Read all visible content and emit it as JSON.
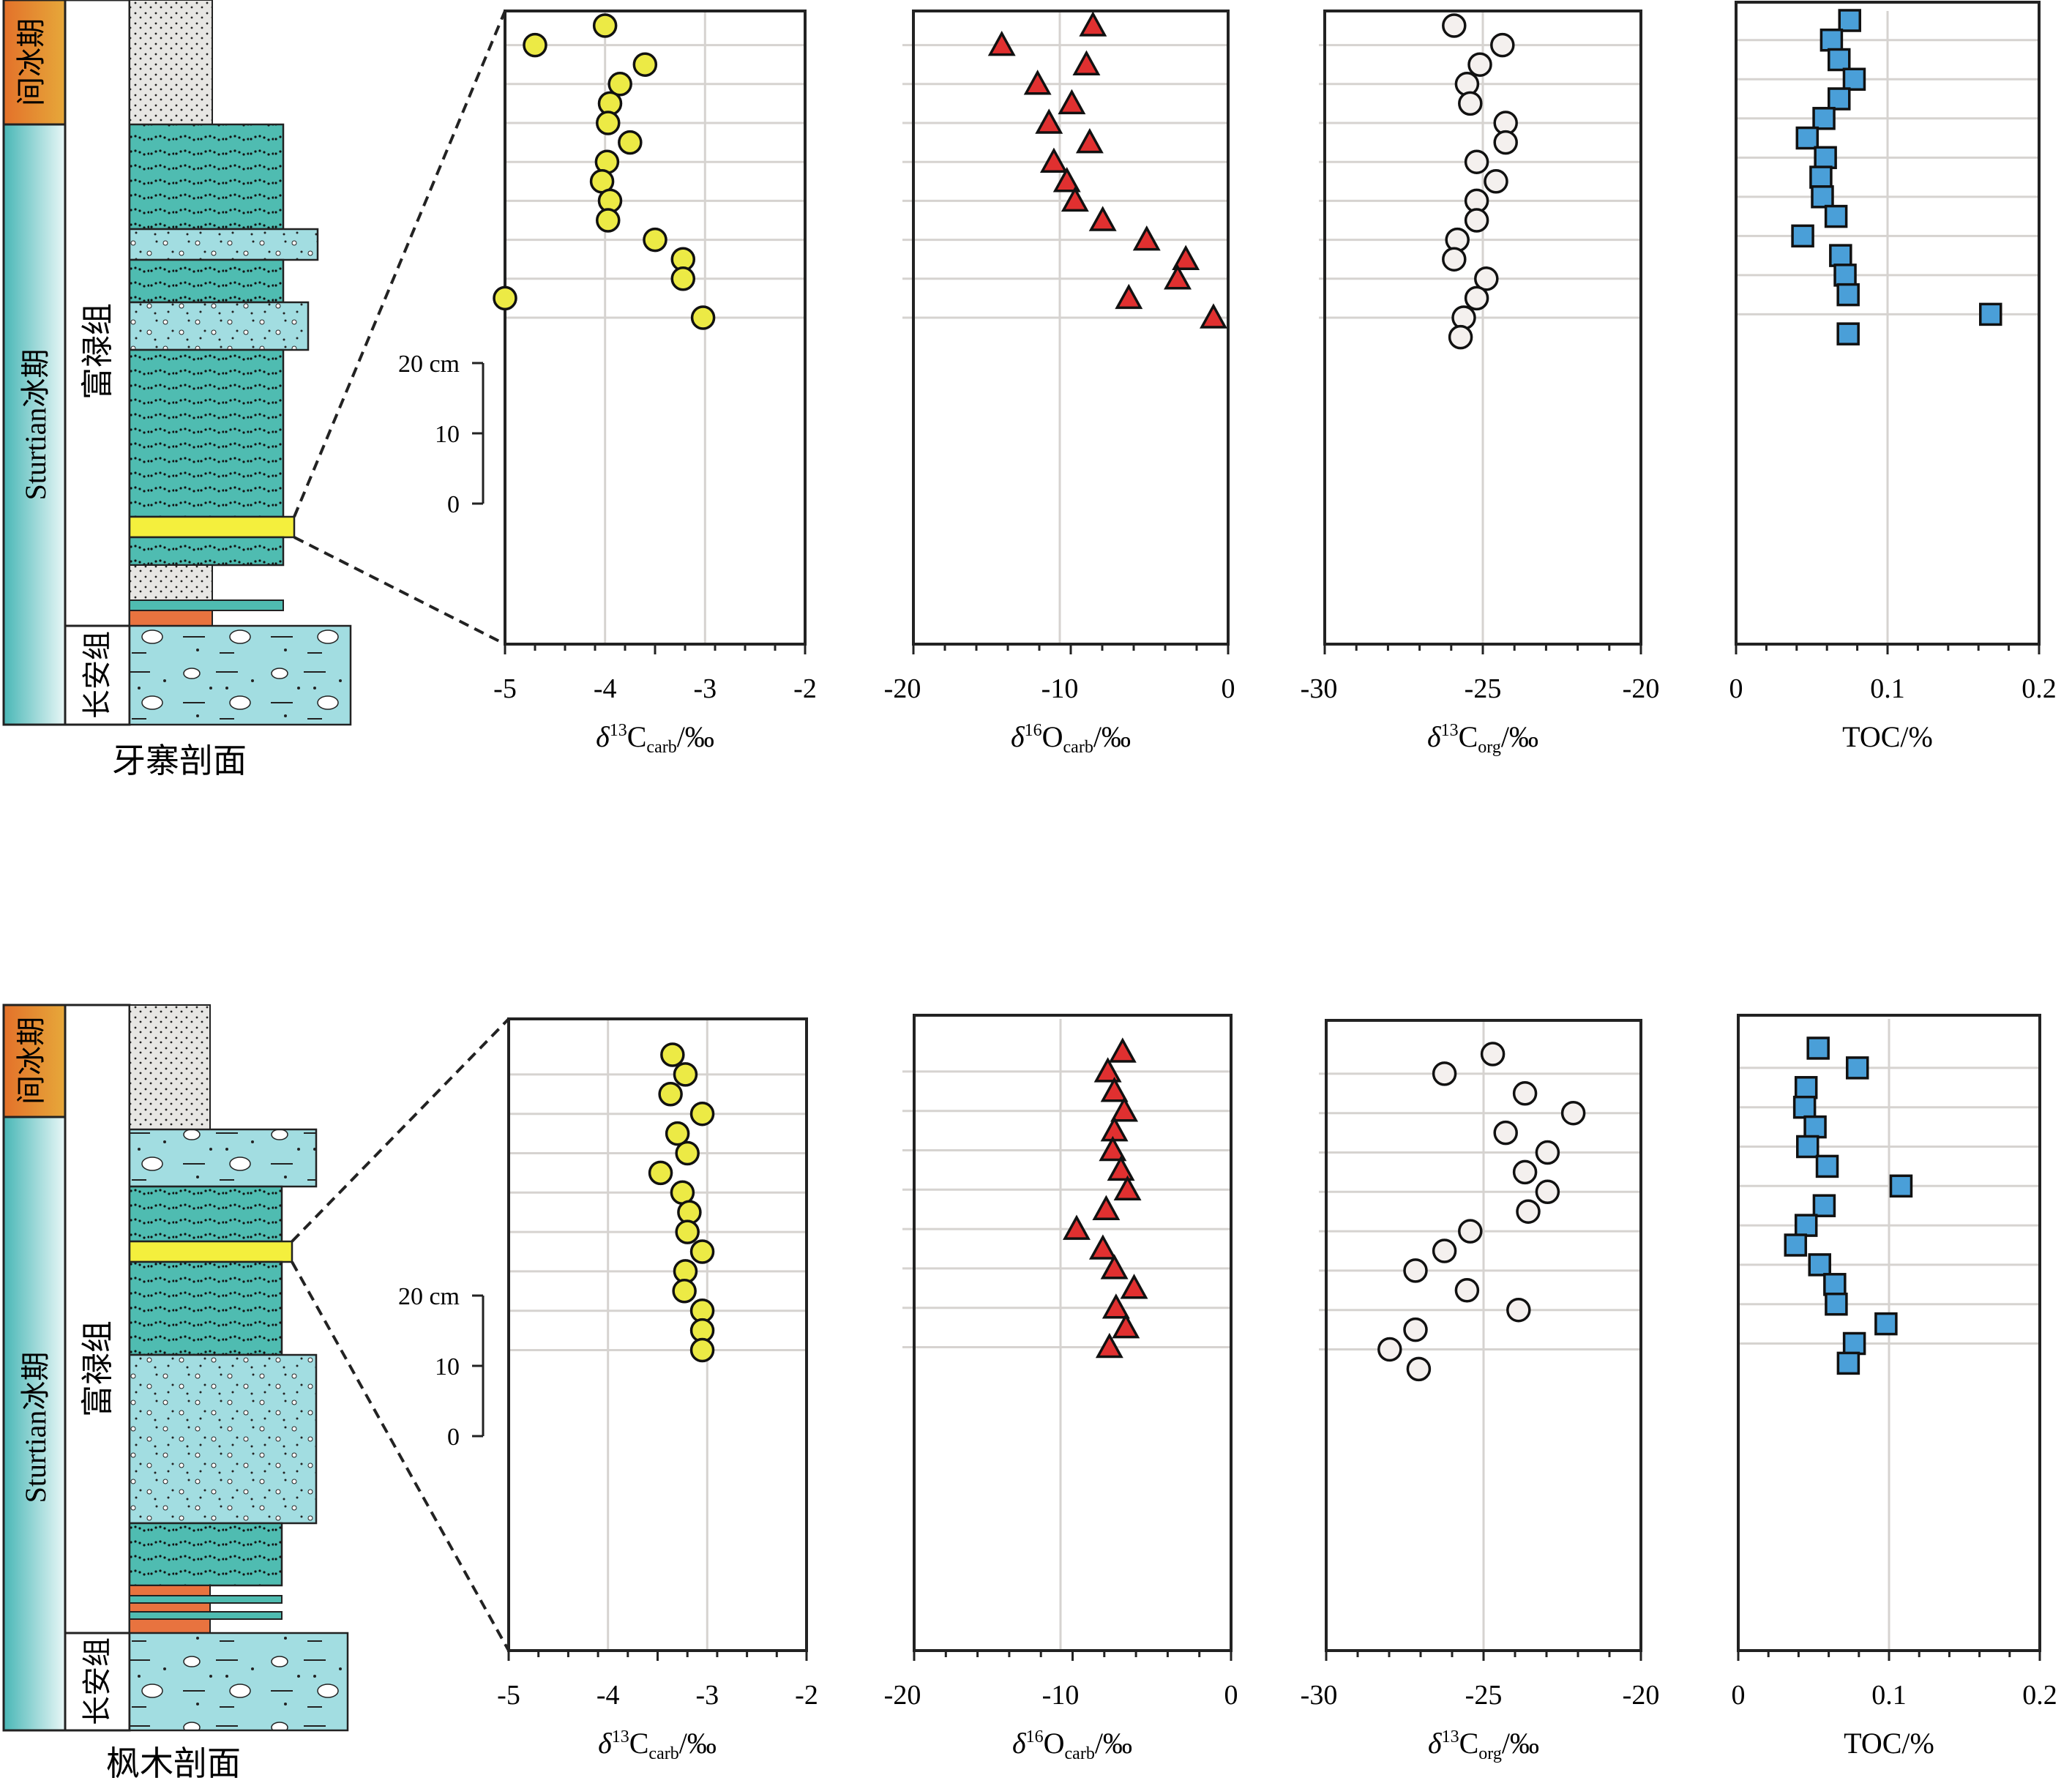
{
  "colors": {
    "carbonate_green": "#4fbcb1",
    "light_cyan": "#a2dde1",
    "sand_gray": "#e7e6e3",
    "interglacial_orange": "#e2862f",
    "marker_yellow": "#f4ef3d",
    "red_bed": "#e8733f",
    "d13c_marker": "#ecea45",
    "d18o_marker": "#e03030",
    "d13corg_marker": "#f4f0ee",
    "toc_marker": "#4a9fd8",
    "gridline": "#d6d3d0"
  },
  "icons": {
    "d13c_carb": "yellow-circle",
    "d18o_carb": "red-triangle",
    "d13c_org": "white-circle",
    "toc": "blue-square"
  },
  "sections": [
    {
      "title": "牙寨剖面",
      "labels": {
        "interglacial": "间冰期",
        "glacial": "Sturtian冰期",
        "formation": "富禄组",
        "base": "长安组"
      },
      "scale": {
        "cm20": "20 cm",
        "cm10": "10",
        "cm0": "0"
      },
      "chart_data": [
        {
          "type": "scatter",
          "marker": "yellow-circle",
          "xlabel": "δ13Ccarb/‰",
          "xlim": [
            -5,
            -2
          ],
          "xticks": [
            -5,
            -4,
            -3,
            -2
          ],
          "x": [
            -4.0,
            -4.7,
            -3.6,
            -3.85,
            -3.95,
            -3.97,
            -3.75,
            -3.98,
            -4.03,
            -3.95,
            -3.97,
            -3.5,
            -3.22,
            -3.22,
            -5.0,
            -3.02
          ]
        },
        {
          "type": "scatter",
          "marker": "red-triangle",
          "xlabel": "δ16Ocarb/‰",
          "xlim": [
            -20,
            0
          ],
          "xticks": [
            -20,
            -10,
            0
          ],
          "x": [
            -8.3,
            -13.9,
            -8.7,
            -11.7,
            -9.6,
            -11.0,
            -8.5,
            -10.7,
            -9.9,
            -9.4,
            -7.7,
            -5.0,
            -2.6,
            -3.1,
            -6.1,
            -0.9
          ]
        },
        {
          "type": "scatter",
          "marker": "white-circle",
          "xlabel": "δ13Corg/‰",
          "xlim": [
            -30,
            -20
          ],
          "xticks": [
            -30,
            -25,
            -20
          ],
          "x": [
            -25.8,
            -24.3,
            -25.0,
            -25.4,
            -25.3,
            -24.2,
            -24.2,
            -25.1,
            -24.5,
            -25.1,
            -25.1,
            -25.7,
            -25.8,
            -24.8,
            -25.1,
            -25.5,
            -25.6
          ]
        },
        {
          "type": "scatter",
          "marker": "blue-square",
          "xlabel": "TOC/%",
          "xlim": [
            0,
            0.2
          ],
          "xticks": [
            "0",
            "0.1",
            "0.2"
          ],
          "x": [
            0.075,
            0.063,
            0.068,
            0.078,
            0.068,
            0.058,
            0.047,
            0.059,
            0.056,
            0.057,
            0.066,
            0.044,
            0.069,
            0.072,
            0.074,
            0.168,
            0.074
          ]
        }
      ]
    },
    {
      "title": "枫木剖面",
      "labels": {
        "interglacial": "间冰期",
        "glacial": "Sturtian冰期",
        "formation": "富禄组",
        "base": "长安组"
      },
      "scale": {
        "cm20": "20 cm",
        "cm10": "10",
        "cm0": "0"
      },
      "chart_data": [
        {
          "type": "scatter",
          "marker": "yellow-circle",
          "xlabel": "δ13Ccarb/‰",
          "xlim": [
            -5,
            -2
          ],
          "xticks": [
            -5,
            -4,
            -3,
            -2
          ],
          "x": [
            -3.35,
            -3.22,
            -3.37,
            -3.05,
            -3.3,
            -3.2,
            -3.47,
            -3.25,
            -3.18,
            -3.2,
            -3.05,
            -3.22,
            -3.23,
            -3.05,
            -3.05,
            -3.05
          ]
        },
        {
          "type": "scatter",
          "marker": "red-triangle",
          "xlabel": "δ16Ocarb/‰",
          "xlim": [
            -20,
            0
          ],
          "xticks": [
            -20,
            -10,
            0
          ],
          "x": [
            -6.6,
            -7.5,
            -7.1,
            -6.5,
            -7.1,
            -7.2,
            -6.7,
            -6.3,
            -7.6,
            -9.4,
            -7.8,
            -7.1,
            -5.9,
            -7.0,
            -6.4,
            -7.4
          ]
        },
        {
          "type": "scatter",
          "marker": "white-circle",
          "xlabel": "δ13Corg/‰",
          "xlim": [
            -30,
            -20
          ],
          "xticks": [
            -30,
            -25,
            -20
          ],
          "x": [
            -24.6,
            -26.1,
            -23.6,
            -22.1,
            -24.2,
            -22.9,
            -23.6,
            -22.9,
            -23.5,
            -25.3,
            -26.1,
            -27.0,
            -25.4,
            -23.8,
            -27.0,
            -27.8,
            -26.9
          ]
        },
        {
          "type": "scatter",
          "marker": "blue-square",
          "xlabel": "TOC/%",
          "xlim": [
            0,
            0.2
          ],
          "xticks": [
            "0",
            "0.1",
            "0.2"
          ],
          "x": [
            0.053,
            0.079,
            0.045,
            0.044,
            0.051,
            0.046,
            0.059,
            0.108,
            0.057,
            0.045,
            0.038,
            0.054,
            0.064,
            0.065,
            0.098,
            0.077,
            0.073
          ]
        }
      ]
    }
  ]
}
